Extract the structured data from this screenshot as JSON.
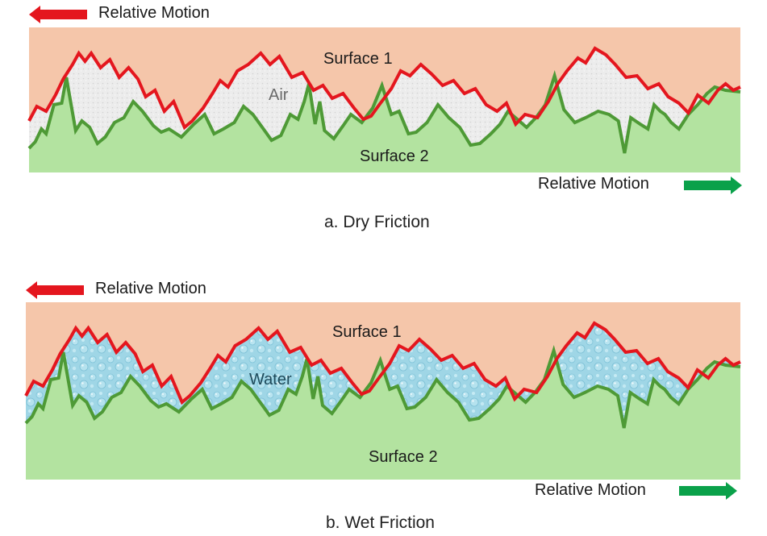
{
  "colors": {
    "surface_1_fill": "#f5c6aa",
    "surface_1_line": "#e4161e",
    "surface_2_fill": "#b3e3a0",
    "surface_2_line": "#4e9a36",
    "air_fill": "#ededed",
    "water_fill": "#9fd6e6",
    "arrow_left": "#e4161e",
    "arrow_right": "#0aa14a"
  },
  "panels": [
    {
      "id": "dry",
      "top_motion_label": "Relative Motion",
      "top_arrow_direction": "left",
      "surface_1_label": "Surface 1",
      "gap_label": "Air",
      "surface_2_label": "Surface 2",
      "bottom_motion_label": "Relative Motion",
      "bottom_arrow_direction": "right",
      "caption": "a.  Dry Friction"
    },
    {
      "id": "wet",
      "top_motion_label": "Relative Motion",
      "top_arrow_direction": "left",
      "surface_1_label": "Surface 1",
      "gap_label": "Water",
      "surface_2_label": "Surface 2",
      "bottom_motion_label": "Relative Motion",
      "bottom_arrow_direction": "right",
      "caption": "b.  Wet Friction"
    }
  ]
}
